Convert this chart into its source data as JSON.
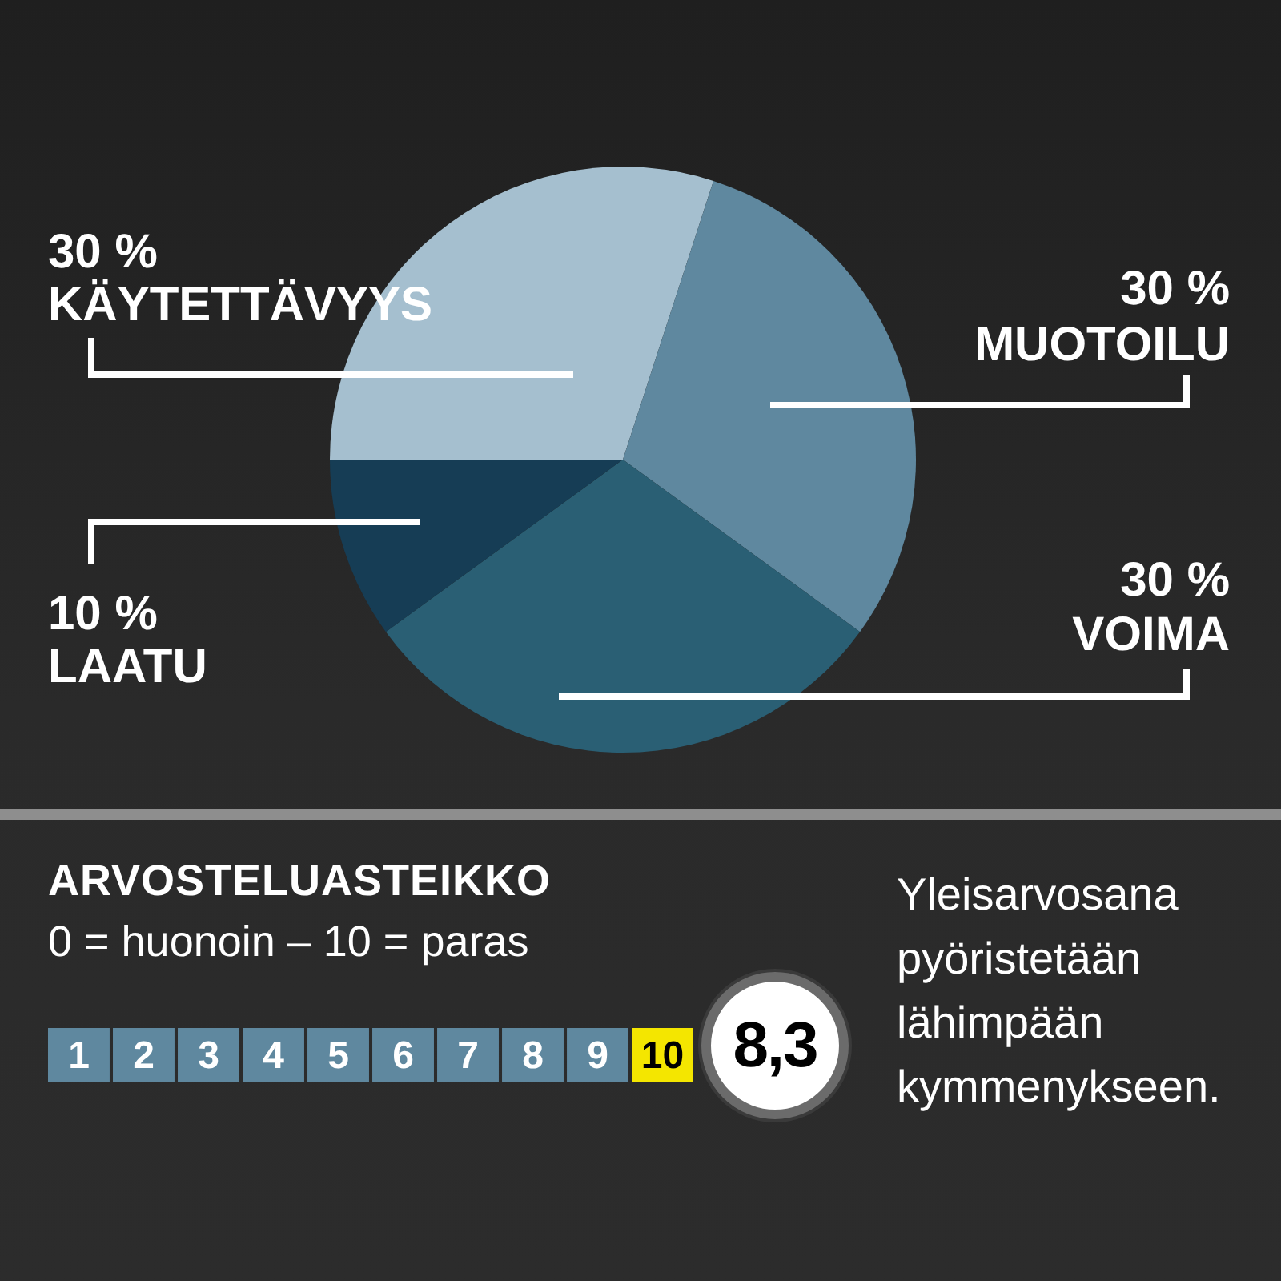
{
  "chart_data": [
    {
      "type": "pie",
      "categories": [
        "KÄYTETTÄVYYS",
        "MUOTOILU",
        "VOIMA",
        "LAATU"
      ],
      "values": [
        30,
        30,
        30,
        10
      ],
      "colors": [
        "#a5bfcf",
        "#5f889f",
        "#2a5f74",
        "#163d55"
      ],
      "value_labels": [
        "30 %",
        "30 %",
        "30 %",
        "10 %"
      ]
    },
    {
      "type": "heatmap",
      "title": "ARVOSTELUASTEIKKO",
      "subtitle": "0 = huonoin – 10 = paras",
      "categories": [
        null,
        null,
        null,
        null,
        null,
        null,
        null,
        null,
        null,
        null
      ],
      "y_categories": [
        null
      ],
      "cells": [
        [
          1,
          2,
          3,
          4,
          5,
          6,
          7,
          8,
          9,
          10
        ]
      ],
      "colors": [
        "#5f889f",
        "#5f889f",
        "#5f889f",
        "#5f889f",
        "#5f889f",
        "#5f889f",
        "#5f889f",
        "#5f889f",
        "#5f889f",
        "#f4e600"
      ],
      "data_labels": true,
      "annotations": [
        "8,3",
        "Yleisarvosana pyöristetään lähimpään kymmenykseen."
      ]
    }
  ]
}
